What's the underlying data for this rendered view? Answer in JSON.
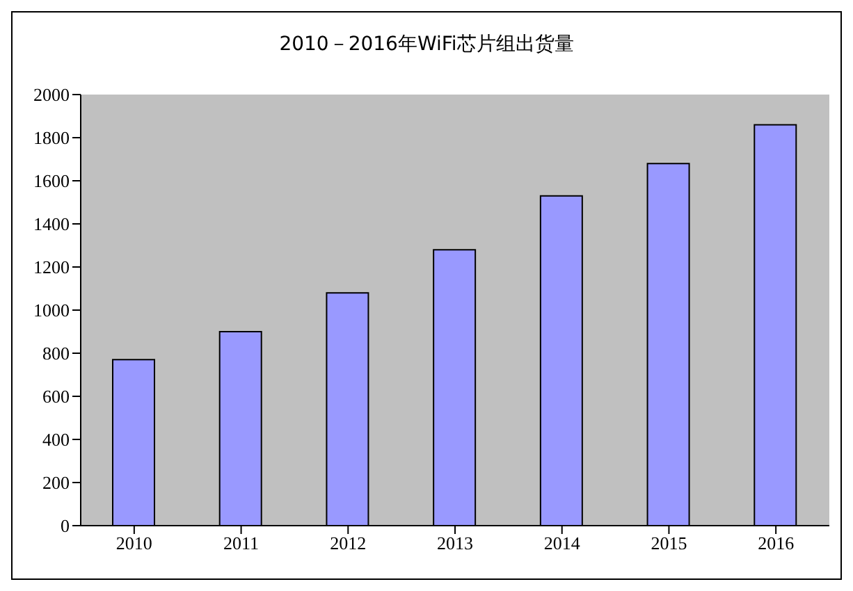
{
  "chart_data": {
    "type": "bar",
    "title": "2010－2016年WiFi芯片组出货量",
    "categories": [
      "2010",
      "2011",
      "2012",
      "2013",
      "2014",
      "2015",
      "2016"
    ],
    "values": [
      770,
      900,
      1080,
      1280,
      1530,
      1680,
      1860
    ],
    "color": "#9999ff",
    "ylim": [
      0,
      2000
    ],
    "yticks": [
      0,
      200,
      400,
      600,
      800,
      1000,
      1200,
      1400,
      1600,
      1800,
      2000
    ],
    "grid": false
  }
}
